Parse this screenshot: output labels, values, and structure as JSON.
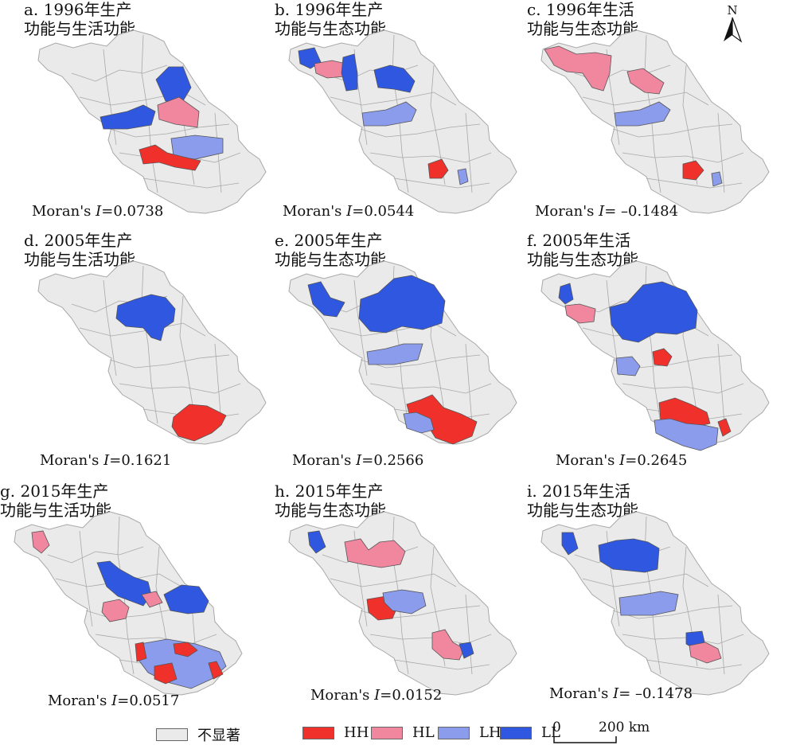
{
  "colors": {
    "ns": "#eaeaea",
    "HH": "#f0312b",
    "HL": "#f0879f",
    "LH": "#8b9cec",
    "LL": "#2f57e0",
    "border": "#a8a8a8"
  },
  "panels": [
    {
      "id": "a",
      "title1": "a. 1996年生产",
      "title2": "功能与生活功能",
      "moran_prefix": "Moran's ",
      "moran_var": "I",
      "moran_value": "=0.0738",
      "moran": 0.0738,
      "clusters": [
        {
          "type": "LL",
          "region": "north-east"
        },
        {
          "type": "HL",
          "region": "east"
        },
        {
          "type": "LL",
          "region": "central-west"
        },
        {
          "type": "LH",
          "region": "central"
        },
        {
          "type": "HH",
          "region": "south"
        }
      ]
    },
    {
      "id": "b",
      "title1": "b. 1996年生产",
      "title2": "功能与生态功能",
      "moran_prefix": "Moran's ",
      "moran_var": "I",
      "moran_value": "=0.0544",
      "moran": 0.0544,
      "clusters": [
        {
          "type": "LL",
          "region": "north-west"
        },
        {
          "type": "HL",
          "region": "north-west"
        },
        {
          "type": "LL",
          "region": "north"
        },
        {
          "type": "LH",
          "region": "central-west"
        },
        {
          "type": "HH",
          "region": "south"
        },
        {
          "type": "LH",
          "region": "south-east"
        }
      ]
    },
    {
      "id": "c",
      "title1": "c. 1996年生活",
      "title2": "功能与生态功能",
      "moran_prefix": "Moran's ",
      "moran_var": "I",
      "moran_value": "= –0.1484",
      "moran": -0.1484,
      "clusters": [
        {
          "type": "HL",
          "region": "north-west"
        },
        {
          "type": "HL",
          "region": "north"
        },
        {
          "type": "LH",
          "region": "central-west"
        },
        {
          "type": "HH",
          "region": "south"
        },
        {
          "type": "LH",
          "region": "south-east"
        }
      ]
    },
    {
      "id": "d",
      "title1": "d. 2005年生产",
      "title2": "功能与生活功能",
      "moran_prefix": "Moran's ",
      "moran_var": "I",
      "moran_value": "=0.1621",
      "moran": 0.1621,
      "clusters": [
        {
          "type": "LL",
          "region": "north"
        },
        {
          "type": "HH",
          "region": "south-east"
        }
      ]
    },
    {
      "id": "e",
      "title1": "e. 2005年生产",
      "title2": "功能与生态功能",
      "moran_prefix": "Moran's ",
      "moran_var": "I",
      "moran_value": "=0.2566",
      "moran": 0.2566,
      "clusters": [
        {
          "type": "LL",
          "region": "north-west"
        },
        {
          "type": "LL",
          "region": "north"
        },
        {
          "type": "LH",
          "region": "central-west"
        },
        {
          "type": "HH",
          "region": "south"
        },
        {
          "type": "LH",
          "region": "south-west"
        }
      ]
    },
    {
      "id": "f",
      "title1": "f. 2005年生活",
      "title2": "功能与生态功能",
      "moran_prefix": "Moran's ",
      "moran_var": "I",
      "moran_value": "=0.2645",
      "moran": 0.2645,
      "clusters": [
        {
          "type": "LL",
          "region": "north-west"
        },
        {
          "type": "HL",
          "region": "north-west"
        },
        {
          "type": "LL",
          "region": "north"
        },
        {
          "type": "HH",
          "region": "central"
        },
        {
          "type": "LH",
          "region": "central-west"
        },
        {
          "type": "HH",
          "region": "south"
        },
        {
          "type": "LH",
          "region": "south"
        }
      ]
    },
    {
      "id": "g",
      "title1": "g. 2015年生产",
      "title2": "功能与生活功能",
      "moran_prefix": "Moran's ",
      "moran_var": "I",
      "moran_value": "=0.0517",
      "moran": 0.0517,
      "clusters": [
        {
          "type": "HL",
          "region": "north-west"
        },
        {
          "type": "LL",
          "region": "central"
        },
        {
          "type": "LL",
          "region": "east"
        },
        {
          "type": "HL",
          "region": "central-west"
        },
        {
          "type": "HL",
          "region": "central"
        },
        {
          "type": "LH",
          "region": "south"
        },
        {
          "type": "HH",
          "region": "south"
        }
      ]
    },
    {
      "id": "h",
      "title1": "h. 2015年生产",
      "title2": "功能与生态功能",
      "moran_prefix": "Moran's ",
      "moran_var": "I",
      "moran_value": "=0.0152",
      "moran": 0.0152,
      "clusters": [
        {
          "type": "LL",
          "region": "north-west"
        },
        {
          "type": "HL",
          "region": "north"
        },
        {
          "type": "HH",
          "region": "central-west"
        },
        {
          "type": "LH",
          "region": "central"
        },
        {
          "type": "HL",
          "region": "south"
        },
        {
          "type": "LL",
          "region": "south"
        }
      ]
    },
    {
      "id": "i",
      "title1": "i. 2015年生活",
      "title2": "功能与生态功能",
      "moran_prefix": "Moran's ",
      "moran_var": "I",
      "moran_value": "= –0.1478",
      "moran": -0.1478,
      "clusters": [
        {
          "type": "LL",
          "region": "north-west"
        },
        {
          "type": "LL",
          "region": "north"
        },
        {
          "type": "LH",
          "region": "central"
        },
        {
          "type": "LL",
          "region": "south"
        },
        {
          "type": "HL",
          "region": "south"
        }
      ]
    }
  ],
  "legend": [
    {
      "key": "ns",
      "label": "不显著"
    },
    {
      "key": "HH",
      "label": "HH"
    },
    {
      "key": "HL",
      "label": "HL"
    },
    {
      "key": "LH",
      "label": "LH"
    },
    {
      "key": "LL",
      "label": "LL"
    }
  ],
  "scale_bar": {
    "start": "0",
    "end": "200 km"
  },
  "north_arrow": {
    "label": "N",
    "icon": "north-arrow-icon"
  }
}
